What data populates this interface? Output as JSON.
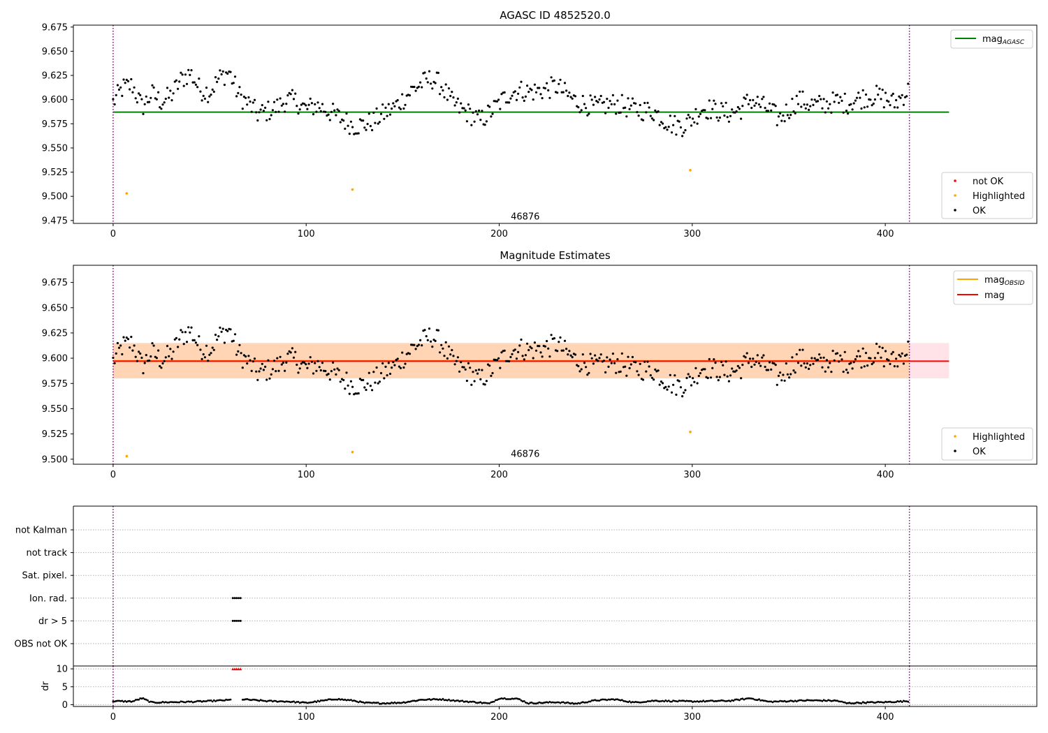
{
  "chart_data": [
    {
      "type": "scatter",
      "title": "AGASC ID 4852520.0",
      "xlim": [
        -20.6,
        478.5
      ],
      "ylim": [
        9.472,
        9.677
      ],
      "x_ticks": [
        0,
        100,
        200,
        300,
        400
      ],
      "x_tick_labels": [
        "0",
        "100",
        "200",
        "300",
        "400"
      ],
      "y_ticks": [
        9.475,
        9.5,
        9.525,
        9.55,
        9.575,
        9.6,
        9.625,
        9.65,
        9.675
      ],
      "y_tick_labels": [
        "9.475",
        "9.500",
        "9.525",
        "9.550",
        "9.575",
        "9.600",
        "9.625",
        "9.650",
        "9.675"
      ],
      "hlines": [
        {
          "name": "mag_agasc",
          "y": 9.587,
          "x_range": [
            0,
            433
          ],
          "color": "#008000"
        }
      ],
      "vlines": [
        {
          "x": 0,
          "color": "#800080"
        },
        {
          "x": 412.5,
          "color": "#800080"
        }
      ],
      "annotation": {
        "text": "46876",
        "x": 206,
        "y": 9.479
      },
      "legends": [
        {
          "position": "top-right",
          "entries": [
            {
              "label": "mag",
              "sub": "AGASC",
              "color": "#008000"
            }
          ]
        },
        {
          "position": "bottom-right",
          "entries": [
            {
              "label": "not OK",
              "color": "#ff0000"
            },
            {
              "label": "Highlighted",
              "color": "#ffa500"
            },
            {
              "label": "OK",
              "color": "#000000"
            }
          ]
        }
      ],
      "series": [
        {
          "name": "OK",
          "color": "#000000",
          "points": [
            [
              0,
              9.597
            ],
            [
              5,
              9.612
            ],
            [
              10,
              9.615
            ],
            [
              15,
              9.592
            ],
            [
              20,
              9.606
            ],
            [
              25,
              9.598
            ],
            [
              30,
              9.604
            ],
            [
              35,
              9.62
            ],
            [
              40,
              9.628
            ],
            [
              45,
              9.61
            ],
            [
              50,
              9.608
            ],
            [
              55,
              9.622
            ],
            [
              60,
              9.629
            ],
            [
              65,
              9.605
            ],
            [
              70,
              9.596
            ],
            [
              75,
              9.585
            ],
            [
              80,
              9.588
            ],
            [
              85,
              9.592
            ],
            [
              90,
              9.6
            ],
            [
              95,
              9.598
            ],
            [
              100,
              9.59
            ],
            [
              105,
              9.594
            ],
            [
              110,
              9.59
            ],
            [
              115,
              9.584
            ],
            [
              120,
              9.578
            ],
            [
              125,
              9.573
            ],
            [
              130,
              9.574
            ],
            [
              135,
              9.578
            ],
            [
              140,
              9.585
            ],
            [
              145,
              9.591
            ],
            [
              150,
              9.6
            ],
            [
              155,
              9.61
            ],
            [
              160,
              9.617
            ],
            [
              165,
              9.622
            ],
            [
              170,
              9.615
            ],
            [
              175,
              9.598
            ],
            [
              180,
              9.59
            ],
            [
              185,
              9.585
            ],
            [
              190,
              9.578
            ],
            [
              195,
              9.586
            ],
            [
              200,
              9.596
            ],
            [
              205,
              9.606
            ],
            [
              210,
              9.61
            ],
            [
              215,
              9.608
            ],
            [
              220,
              9.609
            ],
            [
              225,
              9.611
            ],
            [
              230,
              9.614
            ],
            [
              235,
              9.605
            ],
            [
              240,
              9.598
            ],
            [
              245,
              9.595
            ],
            [
              250,
              9.592
            ],
            [
              255,
              9.594
            ],
            [
              260,
              9.596
            ],
            [
              265,
              9.593
            ],
            [
              270,
              9.59
            ],
            [
              275,
              9.589
            ],
            [
              280,
              9.588
            ],
            [
              285,
              9.58
            ],
            [
              290,
              9.574
            ],
            [
              295,
              9.573
            ],
            [
              300,
              9.58
            ],
            [
              305,
              9.591
            ],
            [
              310,
              9.59
            ],
            [
              315,
              9.587
            ],
            [
              320,
              9.586
            ],
            [
              325,
              9.59
            ],
            [
              330,
              9.6
            ],
            [
              335,
              9.595
            ],
            [
              340,
              9.589
            ],
            [
              345,
              9.58
            ],
            [
              350,
              9.59
            ],
            [
              355,
              9.6
            ],
            [
              360,
              9.596
            ],
            [
              365,
              9.594
            ],
            [
              370,
              9.596
            ],
            [
              375,
              9.598
            ],
            [
              380,
              9.596
            ],
            [
              385,
              9.6
            ],
            [
              390,
              9.603
            ],
            [
              395,
              9.604
            ],
            [
              400,
              9.601
            ],
            [
              405,
              9.596
            ],
            [
              410,
              9.606
            ],
            [
              412,
              9.609
            ]
          ]
        },
        {
          "name": "Highlighted",
          "color": "#ffa500",
          "points": [
            [
              7,
              9.503
            ],
            [
              124,
              9.507
            ],
            [
              299,
              9.527
            ]
          ]
        }
      ]
    },
    {
      "type": "scatter",
      "title": "Magnitude Estimates",
      "xlim": [
        -20.6,
        478.5
      ],
      "ylim": [
        9.495,
        9.692
      ],
      "x_ticks": [
        0,
        100,
        200,
        300,
        400
      ],
      "x_tick_labels": [
        "0",
        "100",
        "200",
        "300",
        "400"
      ],
      "y_ticks": [
        9.5,
        9.525,
        9.55,
        9.575,
        9.6,
        9.625,
        9.65,
        9.675
      ],
      "y_tick_labels": [
        "9.500",
        "9.525",
        "9.550",
        "9.575",
        "9.600",
        "9.625",
        "9.650",
        "9.675"
      ],
      "bands": [
        {
          "y": [
            9.58,
            9.615
          ],
          "x_range": [
            0,
            433
          ],
          "color": "#ffc0cb",
          "opacity": 0.45
        },
        {
          "y": [
            9.58,
            9.615
          ],
          "x_range": [
            0,
            412.5
          ],
          "color": "#ffa500",
          "opacity": 0.22
        }
      ],
      "hlines": [
        {
          "name": "mag_obsid",
          "y": 9.5975,
          "x_range": [
            0,
            412.5
          ],
          "color": "#ffa500"
        },
        {
          "name": "mag",
          "y": 9.597,
          "x_range": [
            0,
            433
          ],
          "color": "#ff0000"
        }
      ],
      "vlines": [
        {
          "x": 0,
          "color": "#800080"
        },
        {
          "x": 412.5,
          "color": "#800080"
        }
      ],
      "annotation": {
        "text": "46876",
        "x": 206,
        "y": 9.503
      },
      "legends": [
        {
          "position": "top-right",
          "entries": [
            {
              "label": "mag",
              "sub": "OBSID",
              "color": "#ffa500"
            },
            {
              "label": "mag",
              "color": "#ff0000"
            }
          ]
        },
        {
          "position": "bottom-right",
          "entries": [
            {
              "label": "Highlighted",
              "color": "#ffa500"
            },
            {
              "label": "OK",
              "color": "#000000"
            }
          ]
        }
      ],
      "series_ref": "same as panel 1"
    },
    {
      "type": "scatter",
      "xlim": [
        -20.6,
        478.5
      ],
      "y_categories": [
        "OBS not OK",
        "dr > 5",
        "Ion. rad.",
        "Sat. pixel.",
        "not track",
        "not Kalman"
      ],
      "flags": [
        {
          "category": "Ion. rad.",
          "x": [
            62,
            63,
            64,
            65,
            66
          ]
        },
        {
          "category": "dr > 5",
          "x": [
            62,
            63,
            64,
            65,
            66
          ]
        }
      ],
      "vlines": [
        {
          "x": 0,
          "color": "#800080"
        },
        {
          "x": 412.5,
          "color": "#800080"
        }
      ]
    },
    {
      "type": "scatter",
      "ylabel": "dr",
      "xlim": [
        -20.6,
        478.5
      ],
      "ylim": [
        -0.5,
        10.8
      ],
      "x_ticks": [
        0,
        100,
        200,
        300,
        400
      ],
      "x_tick_labels": [
        "0",
        "100",
        "200",
        "300",
        "400"
      ],
      "y_ticks": [
        0,
        5,
        10
      ],
      "y_tick_labels": [
        "0",
        "5",
        "10"
      ],
      "vlines": [
        {
          "x": 0,
          "color": "#800080"
        },
        {
          "x": 412.5,
          "color": "#800080"
        }
      ],
      "outliers": {
        "x": [
          62,
          63,
          64,
          65,
          66
        ],
        "y": 10,
        "color": "#ff0000",
        "marker": "triangle-up"
      },
      "dr_profile": [
        [
          0,
          1.0
        ],
        [
          10,
          0.9
        ],
        [
          15,
          1.8
        ],
        [
          20,
          0.6
        ],
        [
          30,
          0.7
        ],
        [
          40,
          0.8
        ],
        [
          50,
          1.0
        ],
        [
          60,
          1.3
        ],
        [
          62,
          1.4
        ],
        [
          67,
          1.5
        ],
        [
          80,
          1.0
        ],
        [
          90,
          0.9
        ],
        [
          100,
          0.5
        ],
        [
          110,
          1.2
        ],
        [
          115,
          1.6
        ],
        [
          125,
          1.1
        ],
        [
          130,
          0.5
        ],
        [
          140,
          0.4
        ],
        [
          150,
          0.6
        ],
        [
          160,
          1.4
        ],
        [
          170,
          1.5
        ],
        [
          180,
          1.0
        ],
        [
          190,
          0.6
        ],
        [
          195,
          0.3
        ],
        [
          200,
          1.8
        ],
        [
          210,
          1.6
        ],
        [
          215,
          0.4
        ],
        [
          230,
          0.7
        ],
        [
          240,
          0.3
        ],
        [
          250,
          1.2
        ],
        [
          260,
          1.5
        ],
        [
          270,
          0.6
        ],
        [
          280,
          1.1
        ],
        [
          300,
          0.9
        ],
        [
          320,
          1.1
        ],
        [
          330,
          1.8
        ],
        [
          340,
          0.8
        ],
        [
          360,
          1.2
        ],
        [
          375,
          1.1
        ],
        [
          380,
          0.4
        ],
        [
          390,
          0.6
        ],
        [
          400,
          0.7
        ],
        [
          412,
          1.0
        ]
      ]
    }
  ]
}
